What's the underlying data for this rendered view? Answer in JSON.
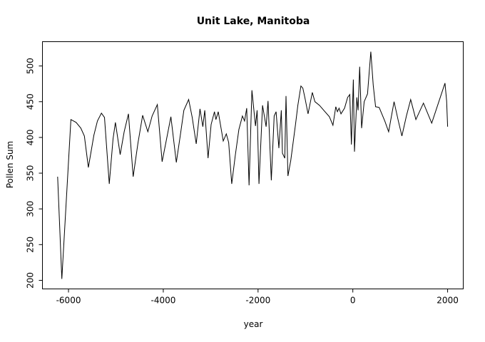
{
  "chart_data": {
    "type": "line",
    "title": "Unit Lake, Manitoba",
    "xlabel": "year",
    "ylabel": "Pollen Sum",
    "x_ticks": [
      -6000,
      -4000,
      -2000,
      0,
      2000
    ],
    "y_ticks": [
      200,
      250,
      300,
      350,
      400,
      450,
      500
    ],
    "xlim": [
      -6550,
      2330
    ],
    "ylim": [
      188,
      534
    ],
    "grid": false,
    "legend": "none",
    "line_color": "#000000",
    "background_color": "#ffffff",
    "points": [
      [
        -6230,
        345
      ],
      [
        -6140,
        202
      ],
      [
        -5950,
        425
      ],
      [
        -5840,
        421
      ],
      [
        -5740,
        413
      ],
      [
        -5665,
        402
      ],
      [
        -5580,
        358
      ],
      [
        -5465,
        403
      ],
      [
        -5390,
        423
      ],
      [
        -5305,
        434
      ],
      [
        -5240,
        428
      ],
      [
        -5140,
        335
      ],
      [
        -5060,
        398
      ],
      [
        -5010,
        421
      ],
      [
        -4910,
        376
      ],
      [
        -4825,
        408
      ],
      [
        -4735,
        433
      ],
      [
        -4635,
        345
      ],
      [
        -4535,
        392
      ],
      [
        -4435,
        431
      ],
      [
        -4325,
        408
      ],
      [
        -4235,
        430
      ],
      [
        -4125,
        446
      ],
      [
        -4025,
        366
      ],
      [
        -3935,
        396
      ],
      [
        -3840,
        429
      ],
      [
        -3725,
        365
      ],
      [
        -3640,
        403
      ],
      [
        -3565,
        438
      ],
      [
        -3465,
        453
      ],
      [
        -3390,
        428
      ],
      [
        -3305,
        391
      ],
      [
        -3225,
        440
      ],
      [
        -3165,
        415
      ],
      [
        -3125,
        438
      ],
      [
        -3055,
        371
      ],
      [
        -2990,
        418
      ],
      [
        -2920,
        436
      ],
      [
        -2890,
        425
      ],
      [
        -2840,
        436
      ],
      [
        -2735,
        395
      ],
      [
        -2670,
        405
      ],
      [
        -2620,
        393
      ],
      [
        -2555,
        335
      ],
      [
        -2480,
        375
      ],
      [
        -2405,
        411
      ],
      [
        -2330,
        430
      ],
      [
        -2285,
        423
      ],
      [
        -2240,
        441
      ],
      [
        -2190,
        333
      ],
      [
        -2130,
        466
      ],
      [
        -2055,
        416
      ],
      [
        -2020,
        438
      ],
      [
        -1980,
        335
      ],
      [
        -1905,
        445
      ],
      [
        -1830,
        415
      ],
      [
        -1790,
        451
      ],
      [
        -1720,
        340
      ],
      [
        -1660,
        430
      ],
      [
        -1620,
        436
      ],
      [
        -1560,
        385
      ],
      [
        -1510,
        438
      ],
      [
        -1485,
        378
      ],
      [
        -1435,
        371
      ],
      [
        -1410,
        458
      ],
      [
        -1370,
        346
      ],
      [
        -1310,
        368
      ],
      [
        -1260,
        393
      ],
      [
        -1210,
        418
      ],
      [
        -1160,
        445
      ],
      [
        -1095,
        472
      ],
      [
        -1055,
        469
      ],
      [
        -1010,
        455
      ],
      [
        -945,
        433
      ],
      [
        -855,
        463
      ],
      [
        -800,
        450
      ],
      [
        -705,
        445
      ],
      [
        -600,
        437
      ],
      [
        -495,
        429
      ],
      [
        -420,
        417
      ],
      [
        -360,
        443
      ],
      [
        -325,
        436
      ],
      [
        -290,
        441
      ],
      [
        -250,
        433
      ],
      [
        -175,
        441
      ],
      [
        -110,
        456
      ],
      [
        -65,
        460
      ],
      [
        -30,
        390
      ],
      [
        10,
        481
      ],
      [
        35,
        380
      ],
      [
        85,
        456
      ],
      [
        110,
        438
      ],
      [
        145,
        499
      ],
      [
        185,
        413
      ],
      [
        240,
        450
      ],
      [
        310,
        461
      ],
      [
        380,
        520
      ],
      [
        430,
        473
      ],
      [
        480,
        443
      ],
      [
        555,
        442
      ],
      [
        675,
        423
      ],
      [
        755,
        408
      ],
      [
        870,
        450
      ],
      [
        960,
        423
      ],
      [
        1035,
        402
      ],
      [
        1130,
        430
      ],
      [
        1220,
        453
      ],
      [
        1330,
        425
      ],
      [
        1490,
        448
      ],
      [
        1665,
        420
      ],
      [
        1945,
        476
      ],
      [
        1980,
        451
      ],
      [
        2000,
        415
      ]
    ]
  }
}
